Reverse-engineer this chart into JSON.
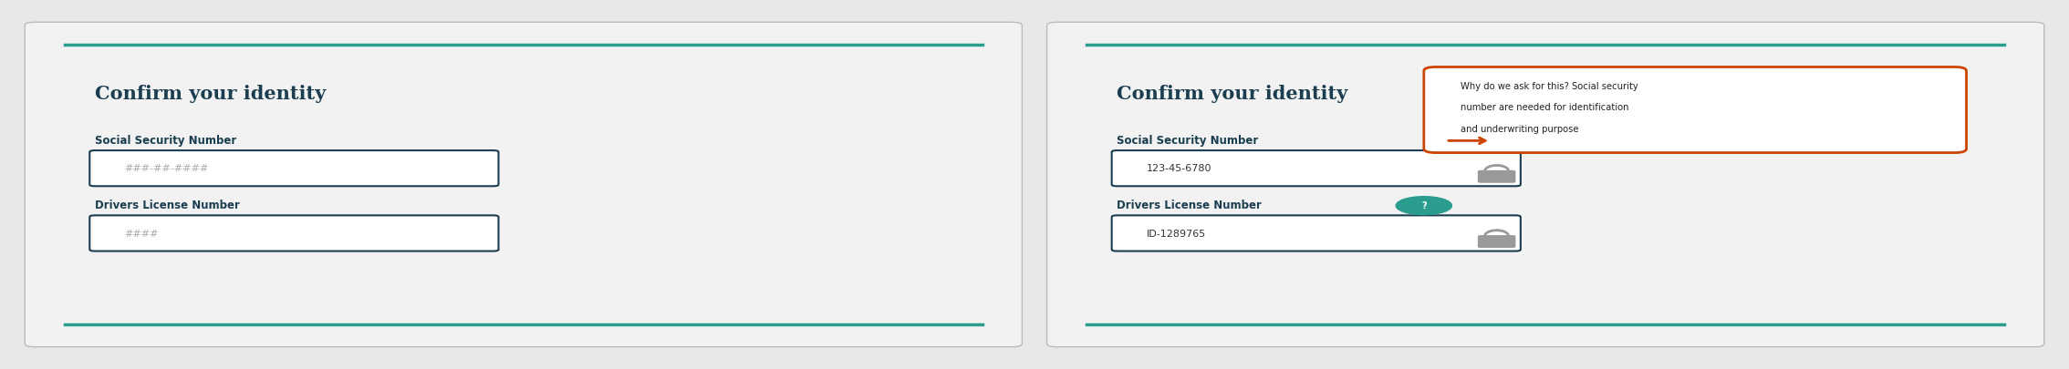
{
  "outer_bg": "#e8e8e8",
  "panel_bg": "#f2f2f2",
  "panel_border": "#bbbbbb",
  "teal_line": "#2a9d8f",
  "dark_navy": "#1a3d4f",
  "title_text": "Confirm your identity",
  "ssn_label": "Social Security Number",
  "dl_label": "Drivers License Number",
  "before_ssn_ph": "###-##-####",
  "before_dl_ph": "####",
  "after_ssn_val": "123-45-6780",
  "after_dl_val": "ID-1289765",
  "field_border": "#1a3d4f",
  "field_bg": "#ffffff",
  "placeholder_color": "#aaaaaa",
  "field_text_color": "#333333",
  "help_bg": "#2a9d8f",
  "help_text": "#ffffff",
  "tooltip_bg": "#ffffff",
  "tooltip_border": "#cc4400",
  "tooltip_line1": "Why do we ask for this? Social security",
  "tooltip_line2": "number are needed for identification",
  "tooltip_line3": "and underwriting purpose",
  "lock_color": "#999999",
  "lock_bg": "#cccccc"
}
